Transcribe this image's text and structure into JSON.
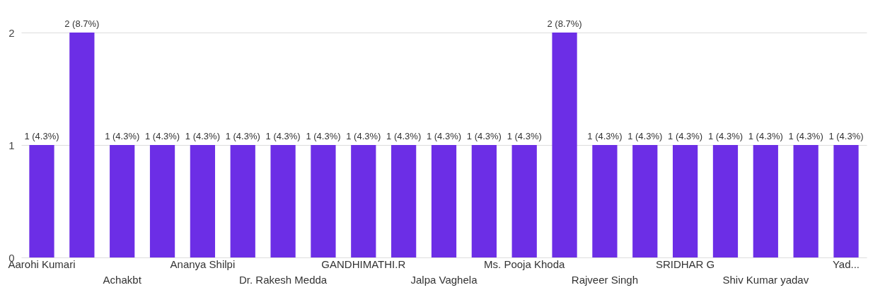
{
  "chart_data": {
    "type": "bar",
    "categories": [
      "Aarohi Kumari",
      null,
      "Achakbt",
      null,
      "Ananya Shilpi",
      null,
      "Dr. Rakesh Medda",
      null,
      "GANDHIMATHI.R",
      null,
      "Jalpa Vaghela",
      null,
      "Ms. Pooja Khoda",
      null,
      "Rajveer Singh",
      null,
      "SRIDHAR G",
      null,
      "Shiv Kumar yadav",
      null,
      "Yad..."
    ],
    "values": [
      1,
      2,
      1,
      1,
      1,
      1,
      1,
      1,
      1,
      1,
      1,
      1,
      1,
      2,
      1,
      1,
      1,
      1,
      1,
      1,
      1
    ],
    "value_labels": [
      "1 (4.3%)",
      "2 (8.7%)",
      "1 (4.3%)",
      "1 (4.3%)",
      "1 (4.3%)",
      "1 (4.3%)",
      "1 (4.3%)",
      "1 (4.3%)",
      "1 (4.3%)",
      "1 (4.3%)",
      "1 (4.3%)",
      "1 (4.3%)",
      "1 (4.3%)",
      "2 (8.7%)",
      "1 (4.3%)",
      "1 (4.3%)",
      "1 (4.3%)",
      "1 (4.3%)",
      "1 (4.3%)",
      "1 (4.3%)",
      "1 (4.3%)"
    ],
    "color": "#6c2ee6",
    "ylim": [
      0,
      2
    ],
    "yticks": [
      0,
      1,
      2
    ],
    "grid": "y"
  }
}
